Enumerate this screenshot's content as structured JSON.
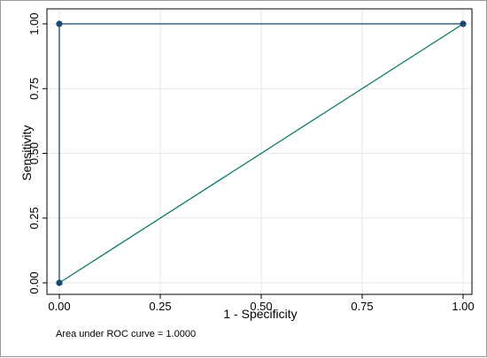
{
  "chart_data": {
    "type": "line",
    "title": "",
    "xlabel": "1 - Specificity",
    "ylabel": "Sensitivity",
    "xlim": [
      0,
      1
    ],
    "ylim": [
      0,
      1
    ],
    "x_ticks": [
      0,
      0.25,
      0.5,
      0.75,
      1
    ],
    "x_tick_labels": [
      "0.00",
      "0.25",
      "0.50",
      "0.75",
      "1.00"
    ],
    "y_ticks": [
      0,
      0.25,
      0.5,
      0.75,
      1
    ],
    "y_tick_labels": [
      "0.00",
      "0.25",
      "0.50",
      "0.75",
      "1.00"
    ],
    "grid": true,
    "series": [
      {
        "x": [
          0,
          0,
          1
        ],
        "y": [
          0,
          1,
          1
        ],
        "markers": true,
        "color": "#1a476f"
      },
      {
        "x": [
          0,
          1
        ],
        "y": [
          0,
          1
        ],
        "markers": false,
        "color": "#0d7a6b"
      }
    ],
    "note": "Area under ROC curve = 1.0000"
  },
  "colors": {
    "grid": "#dfe9ee",
    "frame": "#000000"
  }
}
